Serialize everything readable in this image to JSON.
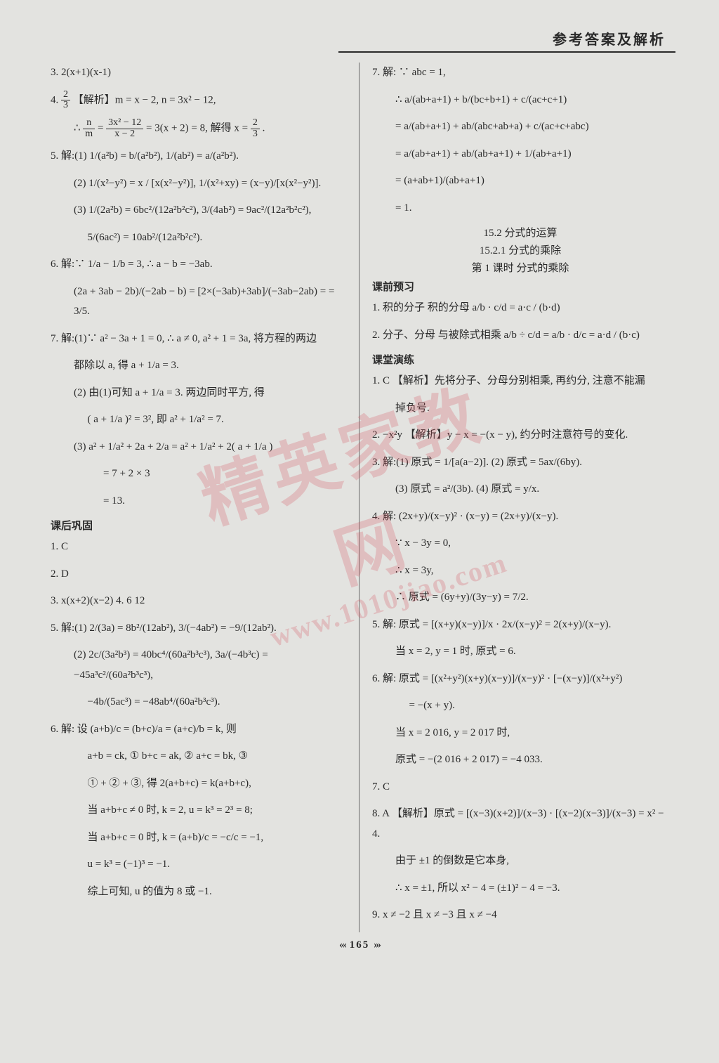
{
  "header": {
    "title": "参考答案及解析"
  },
  "pagenum": "165",
  "watermark": {
    "big": "精英家教网",
    "url": "www.1010jiao.com"
  },
  "left": {
    "l3": "3. 2(x+1)(x-1)",
    "l4_prefix": "4. ",
    "l4_frac_n": "2",
    "l4_frac_d": "3",
    "l4_rest": "  【解析】m = x − 2, n = 3x² − 12,",
    "l4b_pre": "∴ ",
    "l4b_f1n": "n",
    "l4b_f1d": "m",
    "l4b_mid": " = ",
    "l4b_f2n": "3x² − 12",
    "l4b_f2d": "x − 2",
    "l4b_post": " = 3(x + 2) = 8, 解得 x = ",
    "l4b_f3n": "2",
    "l4b_f3d": "3",
    "l4b_end": ".",
    "l5": "5. 解:(1) 1/(a²b) = b/(a²b²),  1/(ab²) = a/(a²b²).",
    "l5_2": "(2) 1/(x²−y²) = x / [x(x²−y²)],  1/(x²+xy) = (x−y)/[x(x²−y²)].",
    "l5_3": "(3) 1/(2a²b) = 6bc²/(12a²b²c²),  3/(4ab²) = 9ac²/(12a²b²c²),",
    "l5_3b": "5/(6ac²) = 10ab²/(12a²b²c²).",
    "l6": "6. 解:∵ 1/a − 1/b = 3, ∴ a − b = −3ab.",
    "l6b": "(2a + 3ab − 2b)/(−2ab − b) = [2×(−3ab)+3ab]/(−3ab−2ab) = = 3/5.",
    "l7": "7. 解:(1)∵ a² − 3a + 1 = 0, ∴ a ≠ 0, a² + 1 = 3a, 将方程的两边",
    "l7b": "都除以 a, 得 a + 1/a = 3.",
    "l7_2": "(2) 由(1)可知 a + 1/a = 3. 两边同时平方, 得",
    "l7_2b": "( a + 1/a )² = 3², 即 a² + 1/a² = 7.",
    "l7_3": "(3) a² + 1/a² + 2a + 2/a = a² + 1/a² + 2( a + 1/a )",
    "l7_3b": "= 7 + 2 × 3",
    "l7_3c": "= 13.",
    "sect_consolidate": "课后巩固",
    "c1": "1. C",
    "c2": "2. D",
    "c3": "3. x(x+2)(x−2)   4. 6   12",
    "c5": "5. 解:(1) 2/(3a) = 8b²/(12ab²),  3/(−4ab²) = −9/(12ab²).",
    "c5_2": "(2) 2c/(3a²b³) = 40bc⁴/(60a²b³c³),  3a/(−4b³c) = −45a³c²/(60a²b³c³),",
    "c5_2b": "−4b/(5ac³) = −48ab⁴/(60a²b³c³).",
    "c6": "6. 解: 设 (a+b)/c = (b+c)/a = (a+c)/b = k, 则",
    "c6b": "a+b = ck, ①   b+c = ak, ②   a+c = bk, ③",
    "c6c": "① + ② + ③, 得 2(a+b+c) = k(a+b+c),",
    "c6d": "当 a+b+c ≠ 0 时, k = 2, u = k³ = 2³ = 8;",
    "c6e": "当 a+b+c = 0 时, k = (a+b)/c = −c/c = −1,",
    "c6f": "u = k³ = (−1)³ = −1.",
    "c6g": "综上可知, u 的值为 8 或 −1."
  },
  "right": {
    "r7": "7. 解: ∵ abc = 1,",
    "r7a": "∴  a/(ab+a+1) + b/(bc+b+1) + c/(ac+c+1)",
    "r7b": "=  a/(ab+a+1) + ab/(abc+ab+a) + c/(ac+c+abc)",
    "r7c": "=  a/(ab+a+1) + ab/(ab+a+1) + 1/(ab+a+1)",
    "r7d": "=  (a+ab+1)/(ab+a+1)",
    "r7e": "= 1.",
    "chap1": "15.2  分式的运算",
    "chap2": "15.2.1  分式的乘除",
    "chap3": "第 1 课时   分式的乘除",
    "sect_preview": "课前预习",
    "p1": "1. 积的分子   积的分母   a/b · c/d = a·c / (b·d)",
    "p2": "2. 分子、分母   与被除式相乘   a/b ÷ c/d = a/b · d/c = a·d / (b·c)",
    "sect_practice": "课堂演练",
    "k1": "1. C  【解析】先将分子、分母分别相乘, 再约分, 注意不能漏",
    "k1b": "掉负号.",
    "k2": "2. −x²y  【解析】y − x = −(x − y), 约分时注意符号的变化.",
    "k3": "3. 解:(1) 原式 = 1/[a(a−2)].   (2) 原式 = 5ax/(6by).",
    "k3b": "(3) 原式 = a²/(3b).   (4) 原式 = y/x.",
    "k4": "4. 解: (2x+y)/(x−y)² · (x−y) = (2x+y)/(x−y).",
    "k4b": "∵ x − 3y = 0,",
    "k4c": "∴ x = 3y,",
    "k4d": "∴ 原式 = (6y+y)/(3y−y) = 7/2.",
    "k5": "5. 解: 原式 = [(x+y)(x−y)]/x · 2x/(x−y)² = 2(x+y)/(x−y).",
    "k5b": "当 x = 2, y = 1 时, 原式 = 6.",
    "k6": "6. 解: 原式 = [(x²+y²)(x+y)(x−y)]/(x−y)² · [−(x−y)]/(x²+y²)",
    "k6b": "= −(x + y).",
    "k6c": "当 x = 2 016, y = 2 017 时,",
    "k6d": "原式 = −(2 016 + 2 017) = −4 033.",
    "k7": "7. C",
    "k8": "8. A 【解析】原式 = [(x−3)(x+2)]/(x−3) · [(x−2)(x−3)]/(x−3) = x² − 4.",
    "k8b": "由于 ±1 的倒数是它本身,",
    "k8c": "∴ x = ±1, 所以 x² − 4 = (±1)² − 4 = −3.",
    "k9": "9. x ≠ −2 且 x ≠ −3 且 x ≠ −4"
  }
}
